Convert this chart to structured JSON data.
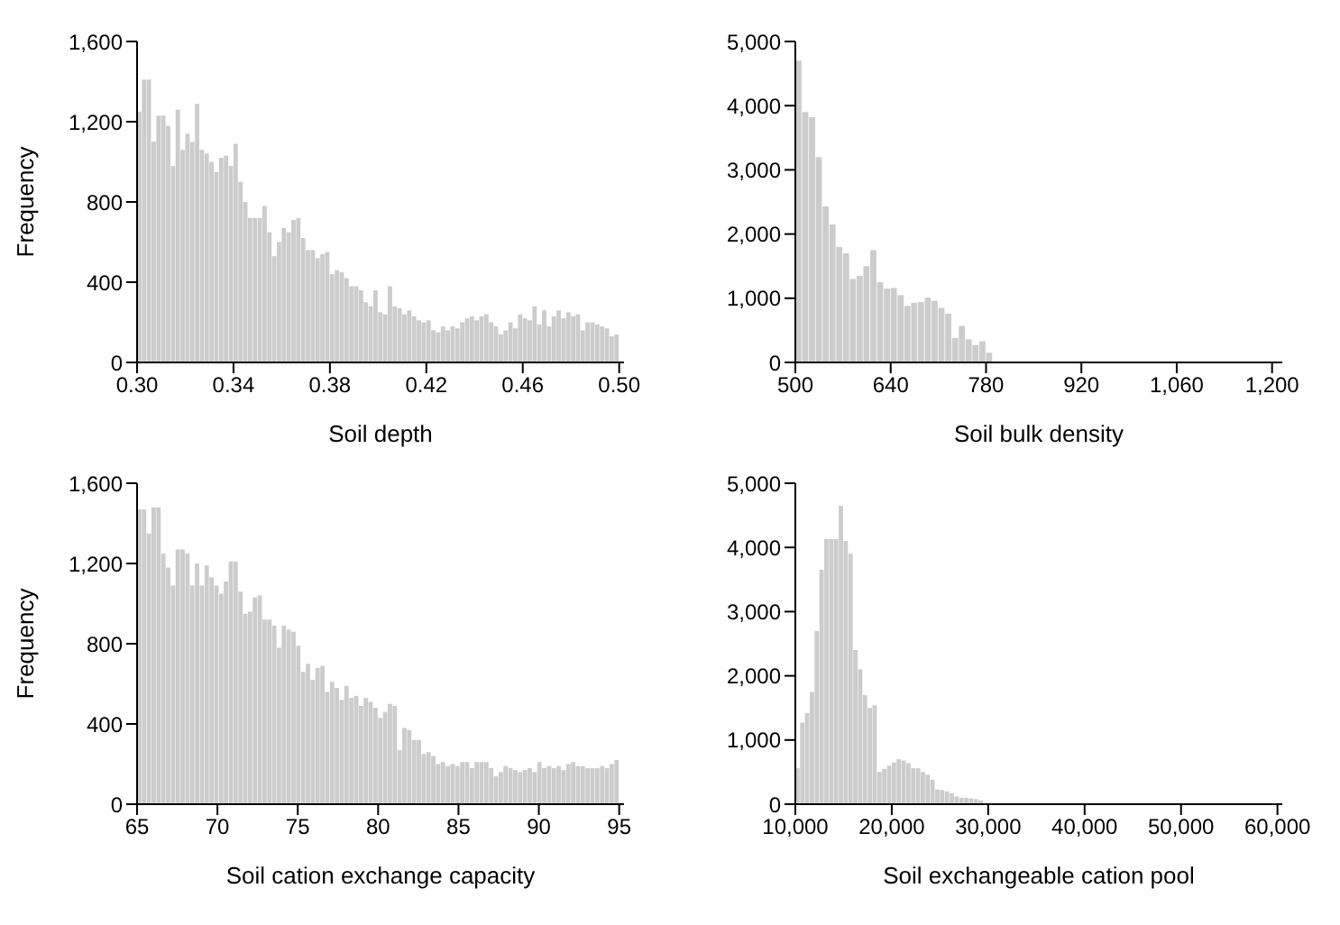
{
  "chart_data": [
    {
      "type": "histogram",
      "xlabel": "Soil depth",
      "ylabel": "Frequency",
      "color": "#cccccc",
      "xlim": [
        0.3,
        0.502
      ],
      "ylim": [
        0,
        1600
      ],
      "xticks": [
        {
          "value": 0.3,
          "label": "0.30"
        },
        {
          "value": 0.34,
          "label": "0.34"
        },
        {
          "value": 0.38,
          "label": "0.38"
        },
        {
          "value": 0.42,
          "label": "0.42"
        },
        {
          "value": 0.46,
          "label": "0.46"
        },
        {
          "value": 0.5,
          "label": "0.50"
        }
      ],
      "yticks": [
        0,
        400,
        800,
        {
          "value": 1200,
          "label": "1,200"
        },
        {
          "value": 1600,
          "label": "1,600"
        }
      ],
      "bins": [
        0.3,
        0.302,
        0.304,
        0.306,
        0.308,
        0.31,
        0.312,
        0.314,
        0.316,
        0.318,
        0.32,
        0.322,
        0.324,
        0.326,
        0.328,
        0.33,
        0.332,
        0.334,
        0.336,
        0.338,
        0.34,
        0.342,
        0.344,
        0.346,
        0.348,
        0.35,
        0.352,
        0.354,
        0.356,
        0.358,
        0.36,
        0.362,
        0.364,
        0.366,
        0.368,
        0.37,
        0.372,
        0.374,
        0.376,
        0.378,
        0.38,
        0.382,
        0.384,
        0.386,
        0.388,
        0.39,
        0.392,
        0.394,
        0.396,
        0.398,
        0.4,
        0.402,
        0.404,
        0.406,
        0.408,
        0.41,
        0.412,
        0.414,
        0.416,
        0.418,
        0.42,
        0.422,
        0.424,
        0.426,
        0.428,
        0.43,
        0.432,
        0.434,
        0.436,
        0.438,
        0.44,
        0.442,
        0.444,
        0.446,
        0.448,
        0.45,
        0.452,
        0.454,
        0.456,
        0.458,
        0.46,
        0.462,
        0.464,
        0.466,
        0.468,
        0.47,
        0.472,
        0.474,
        0.476,
        0.478,
        0.48,
        0.482,
        0.484,
        0.486,
        0.488,
        0.49,
        0.492,
        0.494,
        0.496,
        0.498,
        0.5
      ],
      "values": [
        1250,
        1410,
        1410,
        1100,
        1230,
        1230,
        1180,
        980,
        1260,
        1060,
        1140,
        1100,
        1290,
        1060,
        1040,
        1000,
        950,
        1020,
        1030,
        980,
        1090,
        900,
        800,
        720,
        720,
        720,
        780,
        650,
        530,
        600,
        670,
        650,
        710,
        720,
        620,
        560,
        560,
        520,
        540,
        550,
        440,
        460,
        450,
        420,
        380,
        380,
        360,
        300,
        280,
        360,
        250,
        240,
        380,
        280,
        270,
        240,
        260,
        230,
        210,
        200,
        210,
        160,
        150,
        180,
        160,
        180,
        170,
        200,
        220,
        230,
        210,
        230,
        240,
        200,
        180,
        140,
        160,
        200,
        170,
        240,
        220,
        210,
        280,
        190,
        260,
        180,
        230,
        260,
        220,
        250,
        230,
        240,
        160,
        200,
        200,
        190,
        180,
        170,
        130,
        140
      ]
    },
    {
      "type": "histogram",
      "xlabel": "Soil bulk density",
      "color": "#cccccc",
      "xlim": [
        500,
        1215
      ],
      "ylim": [
        0,
        5000
      ],
      "xticks": [
        500,
        640,
        780,
        920,
        {
          "value": 1060,
          "label": "1,060"
        },
        {
          "value": 1200,
          "label": "1,200"
        }
      ],
      "yticks": [
        0,
        {
          "value": 1000,
          "label": "1,000"
        },
        {
          "value": 2000,
          "label": "2,000"
        },
        {
          "value": 3000,
          "label": "3,000"
        },
        {
          "value": 4000,
          "label": "4,000"
        },
        {
          "value": 5000,
          "label": "5,000"
        }
      ],
      "bins": [
        500,
        510,
        520,
        530,
        540,
        550,
        560,
        570,
        580,
        590,
        600,
        610,
        620,
        630,
        640,
        650,
        660,
        670,
        680,
        690,
        700,
        710,
        720,
        730,
        740,
        750,
        760,
        770,
        780,
        790,
        800,
        810,
        820,
        830,
        840,
        850,
        860,
        870,
        880,
        890,
        900
      ],
      "values": [
        4700,
        3900,
        3820,
        3200,
        2430,
        2150,
        1800,
        1700,
        1300,
        1350,
        1500,
        1750,
        1250,
        1150,
        1160,
        1050,
        880,
        930,
        940,
        1010,
        960,
        850,
        760,
        380,
        570,
        360,
        270,
        330,
        150,
        null,
        null,
        10,
        10,
        10,
        10,
        10,
        10,
        10,
        0,
        0
      ]
    },
    {
      "type": "histogram",
      "xlabel": "Soil cation exchange capacity",
      "ylabel": "Frequency",
      "color": "#cccccc",
      "xlim": [
        65,
        95.3
      ],
      "ylim": [
        0,
        1600
      ],
      "xticks": [
        65,
        70,
        75,
        80,
        85,
        90,
        95
      ],
      "yticks": [
        0,
        400,
        800,
        {
          "value": 1200,
          "label": "1,200"
        },
        {
          "value": 1600,
          "label": "1,600"
        }
      ],
      "bins": [
        65.0,
        65.3,
        65.6,
        65.9,
        66.2,
        66.5,
        66.8,
        67.1,
        67.4,
        67.7,
        68.0,
        68.3,
        68.6,
        68.9,
        69.2,
        69.5,
        69.8,
        70.1,
        70.4,
        70.7,
        71.0,
        71.3,
        71.6,
        71.9,
        72.2,
        72.5,
        72.8,
        73.1,
        73.4,
        73.7,
        74.0,
        74.3,
        74.6,
        74.9,
        75.2,
        75.5,
        75.8,
        76.1,
        76.4,
        76.7,
        77.0,
        77.3,
        77.6,
        77.9,
        78.2,
        78.5,
        78.8,
        79.1,
        79.4,
        79.7,
        80.0,
        80.3,
        80.6,
        80.9,
        81.2,
        81.5,
        81.8,
        82.1,
        82.4,
        82.7,
        83.0,
        83.3,
        83.6,
        83.9,
        84.2,
        84.5,
        84.8,
        85.1,
        85.4,
        85.7,
        86.0,
        86.3,
        86.6,
        86.9,
        87.2,
        87.5,
        87.8,
        88.1,
        88.4,
        88.7,
        89.0,
        89.3,
        89.6,
        89.9,
        90.2,
        90.5,
        90.8,
        91.1,
        91.4,
        91.7,
        92.0,
        92.3,
        92.6,
        92.9,
        93.2,
        93.5,
        93.8,
        94.1,
        94.4,
        94.7,
        95.0
      ],
      "values": [
        1470,
        1470,
        1350,
        1480,
        1480,
        1250,
        1180,
        1090,
        1270,
        1270,
        1250,
        1090,
        1200,
        1090,
        1190,
        1130,
        1090,
        1050,
        1110,
        1210,
        1210,
        1060,
        950,
        960,
        1030,
        1040,
        920,
        920,
        890,
        780,
        890,
        870,
        860,
        790,
        660,
        700,
        620,
        680,
        690,
        560,
        610,
        580,
        520,
        590,
        530,
        540,
        490,
        530,
        510,
        480,
        430,
        460,
        500,
        490,
        270,
        380,
        370,
        320,
        320,
        250,
        260,
        240,
        200,
        210,
        190,
        200,
        190,
        210,
        210,
        180,
        210,
        210,
        210,
        180,
        140,
        160,
        190,
        180,
        170,
        160,
        170,
        180,
        160,
        210,
        180,
        190,
        180,
        190,
        170,
        200,
        210,
        190,
        190,
        180,
        180,
        180,
        190,
        180,
        200,
        220
      ]
    },
    {
      "type": "histogram",
      "xlabel": "Soil exchangeable cation pool",
      "color": "#cccccc",
      "xlim": [
        10000,
        60500
      ],
      "ylim": [
        0,
        5000
      ],
      "xticks": [
        {
          "value": 10000,
          "label": "10,000"
        },
        {
          "value": 20000,
          "label": "20,000"
        },
        {
          "value": 30000,
          "label": "30,000"
        },
        {
          "value": 40000,
          "label": "40,000"
        },
        {
          "value": 50000,
          "label": "50,000"
        },
        {
          "value": 60000,
          "label": "60,000"
        }
      ],
      "yticks": [
        0,
        {
          "value": 1000,
          "label": "1,000"
        },
        {
          "value": 2000,
          "label": "2,000"
        },
        {
          "value": 3000,
          "label": "3,000"
        },
        {
          "value": 4000,
          "label": "4,000"
        },
        {
          "value": 5000,
          "label": "5,000"
        }
      ],
      "bins": [
        10000,
        10500,
        11000,
        11500,
        12000,
        12500,
        13000,
        13500,
        14000,
        14500,
        15000,
        15500,
        16000,
        16500,
        17000,
        17500,
        18000,
        18500,
        19000,
        19500,
        20000,
        20500,
        21000,
        21500,
        22000,
        22500,
        23000,
        23500,
        24000,
        24500,
        25000,
        25500,
        26000,
        26500,
        27000,
        27500,
        28000,
        28500,
        29000,
        29500,
        30000,
        30500
      ],
      "values": [
        560,
        1270,
        1420,
        1750,
        2700,
        3650,
        4130,
        4130,
        4130,
        4650,
        4100,
        3900,
        2400,
        2100,
        1700,
        1500,
        1540,
        500,
        550,
        600,
        650,
        700,
        680,
        640,
        560,
        560,
        500,
        460,
        380,
        230,
        220,
        200,
        170,
        120,
        100,
        100,
        90,
        80,
        60,
        null,
        null
      ]
    }
  ]
}
